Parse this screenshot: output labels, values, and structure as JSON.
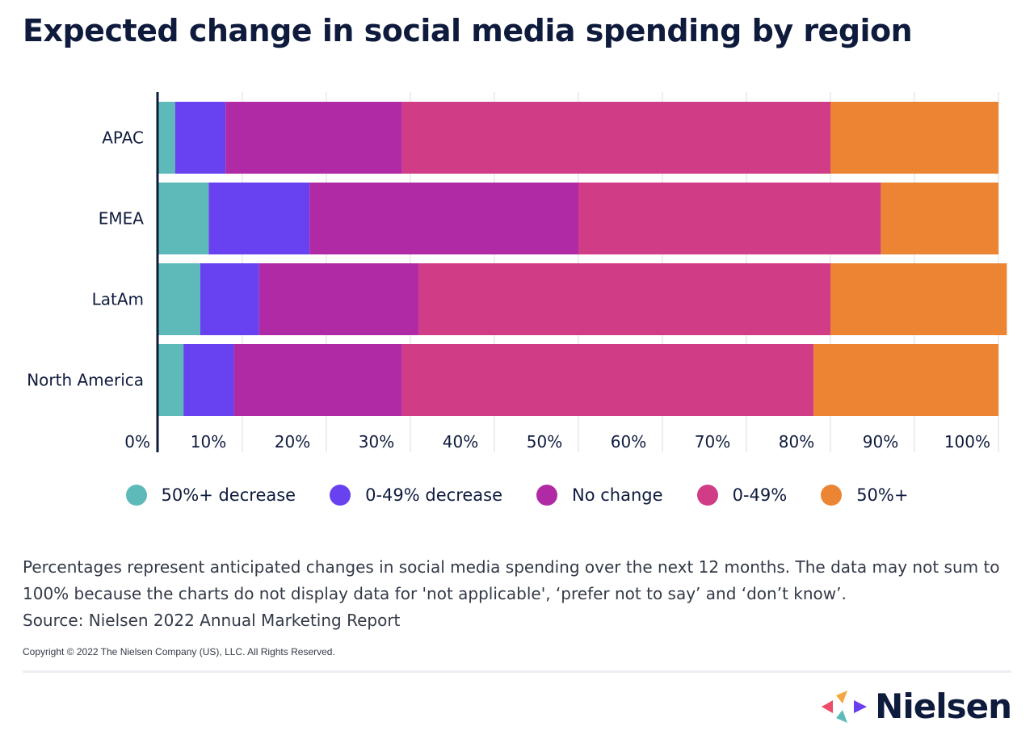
{
  "title": "Expected change in social media spending by region",
  "chart_data": {
    "type": "bar",
    "orientation": "horizontal",
    "stacked": true,
    "categories": [
      "APAC",
      "EMEA",
      "LatAm",
      "North America"
    ],
    "series": [
      {
        "name": "50%+ decrease",
        "color": "#5ebab8",
        "values": [
          2,
          6,
          5,
          3
        ]
      },
      {
        "name": "0-49% decrease",
        "color": "#6841f0",
        "values": [
          6,
          12,
          7,
          6
        ]
      },
      {
        "name": "No change",
        "color": "#b12aa5",
        "values": [
          21,
          32,
          19,
          20
        ]
      },
      {
        "name": "0-49%",
        "color": "#d13c87",
        "values": [
          51,
          36,
          49,
          49
        ]
      },
      {
        "name": "50%+",
        "color": "#eb8534",
        "values": [
          20,
          14,
          21,
          22
        ]
      }
    ],
    "xlim": [
      0,
      100
    ],
    "xticks": [
      "0%",
      "10%",
      "20%",
      "30%",
      "40%",
      "50%",
      "60%",
      "70%",
      "80%",
      "90%",
      "100%"
    ],
    "grid": true,
    "legend_position": "bottom"
  },
  "notes": {
    "line1": "Percentages represent anticipated changes in social media spending over the next 12 months. The data may not sum to 100% because the charts do not display data for 'not applicable', ‘prefer not to say’ and ‘don’t know’.",
    "source": "Source: Nielsen 2022 Annual Marketing Report"
  },
  "copyright": "Copyright © 2022 The Nielsen Company (US), LLC. All Rights Reserved.",
  "brand": {
    "name": "Nielsen",
    "logo_colors": [
      "#ee4d6a",
      "#f5a640",
      "#6a3ff0",
      "#5ebab8"
    ]
  }
}
